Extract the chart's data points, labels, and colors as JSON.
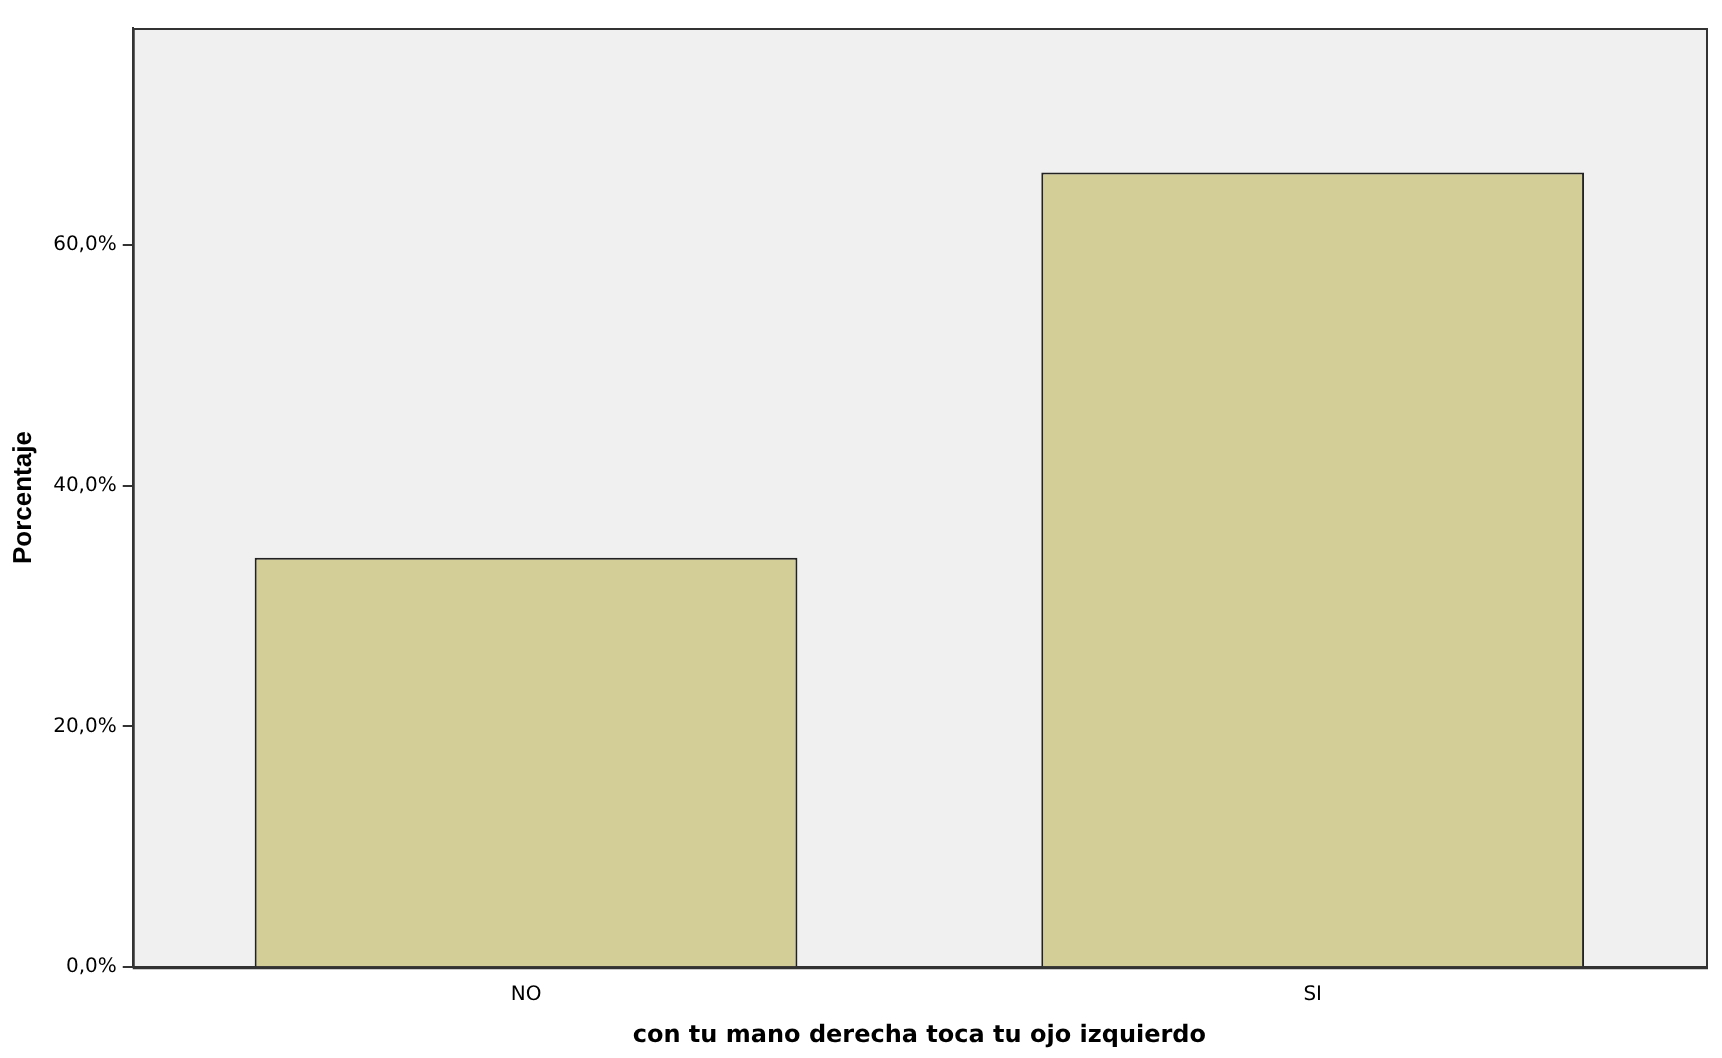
{
  "chart_data": {
    "type": "bar",
    "xlabel": "con tu mano derecha toca tu ojo izquierdo",
    "ylabel": "Porcentaje",
    "categories": [
      "NO",
      "SI"
    ],
    "values": [
      34,
      66
    ],
    "color": "#d3ce97",
    "ylim": [
      0,
      78
    ],
    "yticks": [
      {
        "value": 0,
        "label": "0,0%"
      },
      {
        "value": 20,
        "label": "20,0%"
      },
      {
        "value": 40,
        "label": "40,0%"
      },
      {
        "value": 60,
        "label": "60,0%"
      }
    ],
    "grid": false,
    "legend": false
  }
}
